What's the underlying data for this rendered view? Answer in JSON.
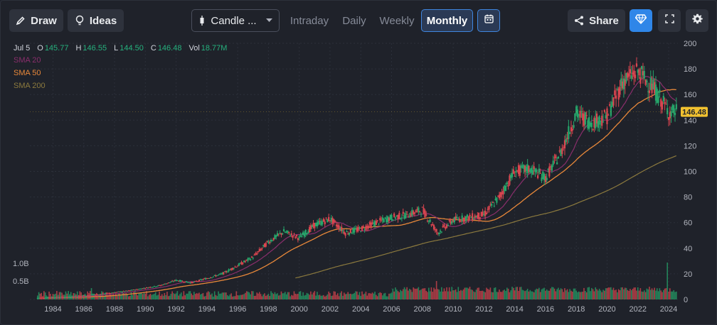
{
  "toolbar": {
    "draw_label": "Draw",
    "ideas_label": "Ideas",
    "chart_type_label": "Candle ...",
    "tabs": [
      {
        "label": "Intraday",
        "active": false
      },
      {
        "label": "Daily",
        "active": false
      },
      {
        "label": "Weekly",
        "active": false
      },
      {
        "label": "Monthly",
        "active": true
      }
    ],
    "share_label": "Share"
  },
  "legend": {
    "date": "Jul 5",
    "open_label": "O",
    "open": "145.77",
    "high_label": "H",
    "high": "146.55",
    "low_label": "L",
    "low": "144.50",
    "close_label": "C",
    "close": "146.48",
    "vol_label": "Vol",
    "vol": "18.77M",
    "sma": [
      {
        "label": "SMA 20",
        "color": "#8a2e6c"
      },
      {
        "label": "SMA 50",
        "color": "#e8883a"
      },
      {
        "label": "SMA 200",
        "color": "#8c7a3e"
      }
    ]
  },
  "price_tag": "146.48",
  "colors": {
    "up": "#26a66b",
    "down": "#d9454f",
    "grid": "#2c303a",
    "accent": "#2f86e8",
    "price_tag_bg": "#f2c230"
  },
  "chart_data": {
    "type": "candlestick",
    "interval": "monthly",
    "ylim": [
      0,
      200
    ],
    "yticks": [
      0,
      20,
      40,
      60,
      80,
      100,
      120,
      140,
      160,
      180,
      200
    ],
    "xticks": [
      "1984",
      "1986",
      "1988",
      "1990",
      "1992",
      "1994",
      "1996",
      "1998",
      "2000",
      "2002",
      "2004",
      "2006",
      "2008",
      "2010",
      "2012",
      "2014",
      "2016",
      "2018",
      "2020",
      "2022",
      "2024"
    ],
    "volume_ticks": [
      "0.5B",
      "1.0B"
    ],
    "last_close": 146.48,
    "series": [
      {
        "name": "SMA 20",
        "color": "#8a2e6c"
      },
      {
        "name": "SMA 50",
        "color": "#e8883a"
      },
      {
        "name": "SMA 200",
        "color": "#8c7a3e"
      }
    ],
    "closes_yearly": [
      {
        "year": 1983,
        "close": 1.2
      },
      {
        "year": 1985,
        "close": 2
      },
      {
        "year": 1987,
        "close": 4
      },
      {
        "year": 1989,
        "close": 7
      },
      {
        "year": 1991,
        "close": 11
      },
      {
        "year": 1992,
        "close": 15
      },
      {
        "year": 1993,
        "close": 13
      },
      {
        "year": 1995,
        "close": 20
      },
      {
        "year": 1997,
        "close": 33
      },
      {
        "year": 1998,
        "close": 45
      },
      {
        "year": 1999,
        "close": 53
      },
      {
        "year": 2000,
        "close": 48
      },
      {
        "year": 2001,
        "close": 58
      },
      {
        "year": 2002,
        "close": 63
      },
      {
        "year": 2003,
        "close": 52
      },
      {
        "year": 2004,
        "close": 55
      },
      {
        "year": 2005,
        "close": 60
      },
      {
        "year": 2006,
        "close": 64
      },
      {
        "year": 2007,
        "close": 66
      },
      {
        "year": 2008,
        "close": 70
      },
      {
        "year": 2009,
        "close": 52
      },
      {
        "year": 2010,
        "close": 62
      },
      {
        "year": 2011,
        "close": 64
      },
      {
        "year": 2012,
        "close": 66
      },
      {
        "year": 2013,
        "close": 80
      },
      {
        "year": 2014,
        "close": 100
      },
      {
        "year": 2015,
        "close": 102
      },
      {
        "year": 2016,
        "close": 95
      },
      {
        "year": 2017,
        "close": 115
      },
      {
        "year": 2018,
        "close": 145
      },
      {
        "year": 2019,
        "close": 138
      },
      {
        "year": 2020,
        "close": 143
      },
      {
        "year": 2021,
        "close": 170
      },
      {
        "year": 2022,
        "close": 178
      },
      {
        "year": 2023,
        "close": 165
      },
      {
        "year": 2024,
        "close": 146.48
      }
    ]
  }
}
